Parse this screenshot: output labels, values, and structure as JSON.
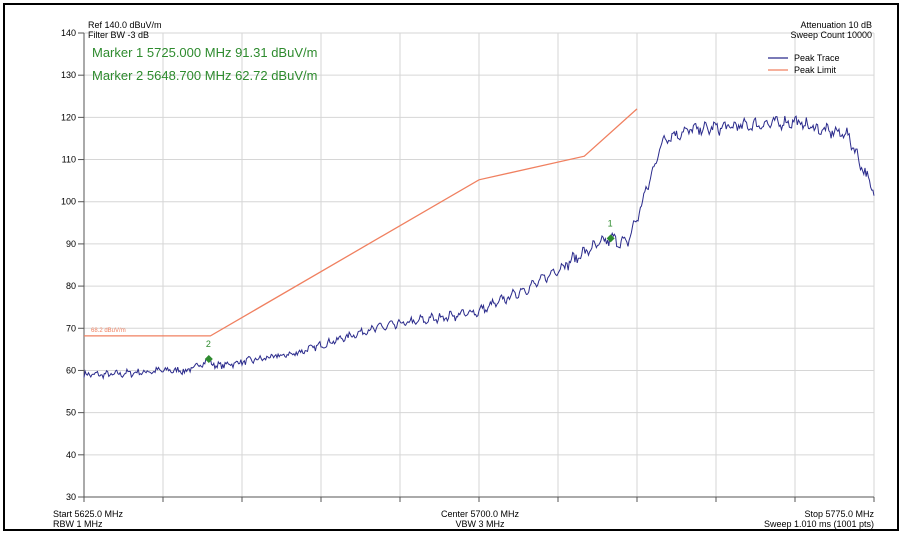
{
  "header": {
    "ref_level": "Ref 140.0 dBuV/m",
    "filter_bw": "Filter BW -3 dB",
    "attenuation": "Attenuation 10 dB",
    "sweep_count": "Sweep Count 10000"
  },
  "markers": {
    "marker1": "Marker 1 5725.000 MHz 91.31 dBuV/m",
    "marker2": "Marker 2 5648.700 MHz 62.72 dBuV/m",
    "m1_label": "1",
    "m2_label": "2"
  },
  "footer": {
    "start": "Start 5625.0 MHz",
    "rbw": "RBW 1 MHz",
    "center": "Center 5700.0 MHz",
    "vbw": "VBW 3 MHz",
    "stop": "Stop 5775.0 MHz",
    "sweep": "Sweep 1.010 ms (1001 pts)"
  },
  "limit_label": "68.2 dBuV/m",
  "colors": {
    "trace": "#2b2b8c",
    "limit": "#f08060",
    "marker": "#2e8b2e",
    "grid": "#d6d6d6"
  },
  "chart_data": {
    "type": "line",
    "xlim": [
      5625,
      5775
    ],
    "ylim": [
      30,
      140
    ],
    "yticks": [
      30,
      40,
      50,
      60,
      70,
      80,
      90,
      100,
      110,
      120,
      130,
      140
    ],
    "xlabel": "",
    "ylabel": "",
    "grid": true,
    "legend": "top-right",
    "series": [
      {
        "name": "Peak Trace",
        "x": [
          5625,
          5630,
          5635,
          5640,
          5645,
          5648.7,
          5650,
          5655,
          5660,
          5665,
          5670,
          5675,
          5680,
          5685,
          5690,
          5695,
          5700,
          5705,
          5710,
          5715,
          5720,
          5725,
          5728,
          5730,
          5735,
          5740,
          5745,
          5750,
          5755,
          5760,
          5765,
          5770,
          5775
        ],
        "y": [
          59,
          59,
          59.5,
          60,
          60,
          62.7,
          61,
          62,
          63,
          64,
          66,
          68,
          70,
          71,
          72,
          73,
          74,
          77,
          80,
          84,
          88,
          91.3,
          90,
          96,
          115,
          117,
          117.5,
          118,
          118.5,
          119,
          117,
          116,
          102
        ]
      },
      {
        "name": "Peak Limit",
        "x": [
          5625,
          5649,
          5700,
          5720,
          5730
        ],
        "y": [
          68.2,
          68.2,
          105.2,
          110.8,
          122
        ]
      }
    ],
    "markers": [
      {
        "name": "1",
        "x": 5725.0,
        "y": 91.31
      },
      {
        "name": "2",
        "x": 5648.7,
        "y": 62.72
      }
    ]
  }
}
